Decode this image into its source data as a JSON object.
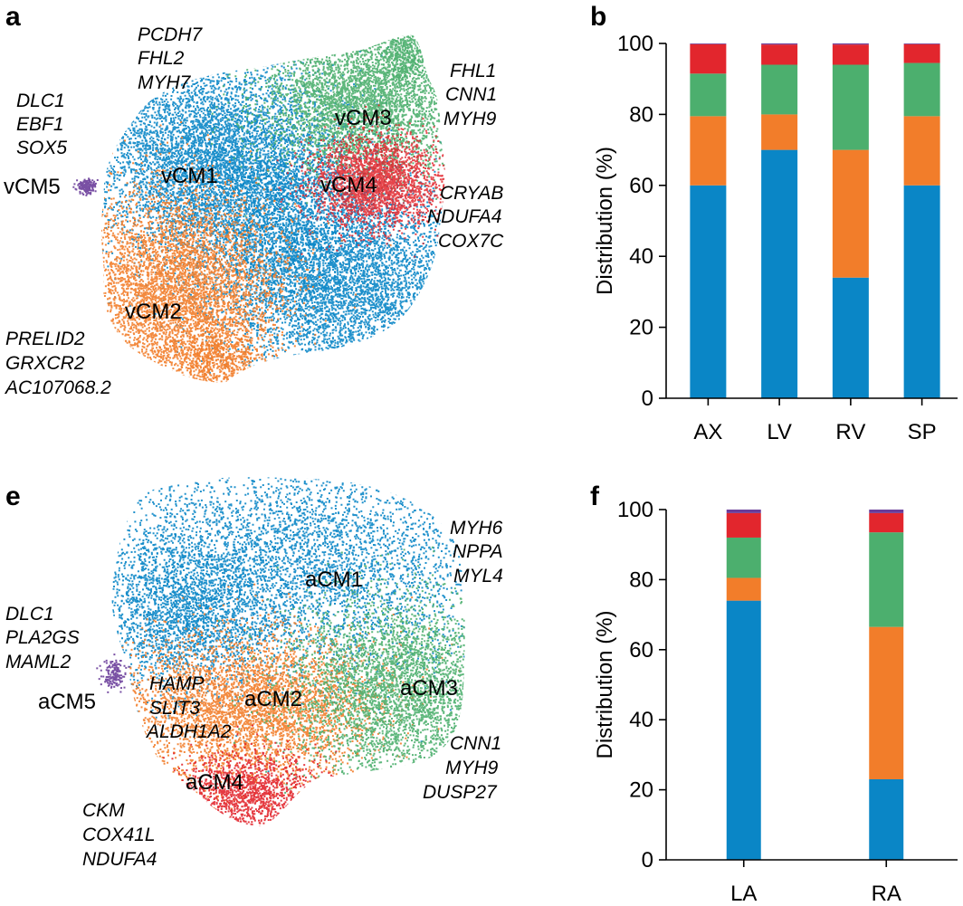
{
  "colors": {
    "CM1": "#0a86c6",
    "CM2": "#f27d2a",
    "CM3": "#4caf6e",
    "CM4": "#e2262d",
    "CM5": "#6a3d9a"
  },
  "panel_a": {
    "letter": "a",
    "clusters": [
      {
        "name": "vCM1",
        "color_key": "CM1"
      },
      {
        "name": "vCM2",
        "color_key": "CM2"
      },
      {
        "name": "vCM3",
        "color_key": "CM3"
      },
      {
        "name": "vCM4",
        "color_key": "CM4"
      },
      {
        "name": "vCM5",
        "color_key": "CM5"
      }
    ],
    "gene_groups": [
      {
        "genes": [
          "PCDH7",
          "FHL2",
          "MYH7"
        ]
      },
      {
        "genes": [
          "FHL1",
          "CNN1",
          "MYH9"
        ]
      },
      {
        "genes": [
          "DLC1",
          "EBF1",
          "SOX5"
        ]
      },
      {
        "genes": [
          "CRYAB",
          "NDUFA4",
          "COX7C"
        ]
      },
      {
        "genes": [
          "PRELID2",
          "GRXCR2",
          "AC107068.2"
        ]
      }
    ]
  },
  "panel_e": {
    "letter": "e",
    "clusters": [
      {
        "name": "aCM1",
        "color_key": "CM1"
      },
      {
        "name": "aCM2",
        "color_key": "CM2"
      },
      {
        "name": "aCM3",
        "color_key": "CM3"
      },
      {
        "name": "aCM4",
        "color_key": "CM4"
      },
      {
        "name": "aCM5",
        "color_key": "CM5"
      }
    ],
    "gene_groups": [
      {
        "genes": [
          "MYH6",
          "NPPA",
          "MYL4"
        ]
      },
      {
        "genes": [
          "DLC1",
          "PLA2GS",
          "MAML2"
        ]
      },
      {
        "genes": [
          "HAMP",
          "SLIT3",
          "ALDH1A2"
        ]
      },
      {
        "genes": [
          "CNN1",
          "MYH9",
          "DUSP27"
        ]
      },
      {
        "genes": [
          "CKM",
          "COX41L",
          "NDUFA4"
        ]
      }
    ]
  },
  "chart_data": [
    {
      "panel": "b",
      "type": "bar",
      "stacked": true,
      "categories": [
        "AX",
        "LV",
        "RV",
        "SP"
      ],
      "series": [
        {
          "color_key": "CM1",
          "values": [
            60,
            70,
            34,
            60
          ]
        },
        {
          "color_key": "CM2",
          "values": [
            19.5,
            10,
            36,
            19.5
          ]
        },
        {
          "color_key": "CM3",
          "values": [
            12,
            14,
            24,
            15
          ]
        },
        {
          "color_key": "CM4",
          "values": [
            8.3,
            5.7,
            5.7,
            5.3
          ]
        },
        {
          "color_key": "CM5",
          "values": [
            0.2,
            0.3,
            0.3,
            0.2
          ]
        }
      ],
      "ylabel": "Distribution (%)",
      "ylim": [
        0,
        100
      ],
      "yticks": [
        0,
        20,
        40,
        60,
        80,
        100
      ]
    },
    {
      "panel": "f",
      "type": "bar",
      "stacked": true,
      "categories": [
        "LA",
        "RA"
      ],
      "series": [
        {
          "color_key": "CM1",
          "values": [
            74,
            23
          ]
        },
        {
          "color_key": "CM2",
          "values": [
            6.5,
            43.5
          ]
        },
        {
          "color_key": "CM3",
          "values": [
            11.5,
            27
          ]
        },
        {
          "color_key": "CM4",
          "values": [
            7,
            5.5
          ]
        },
        {
          "color_key": "CM5",
          "values": [
            1,
            1
          ]
        }
      ],
      "ylabel": "Distribution (%)",
      "ylim": [
        0,
        100
      ],
      "yticks": [
        0,
        20,
        40,
        60,
        80,
        100
      ]
    }
  ]
}
